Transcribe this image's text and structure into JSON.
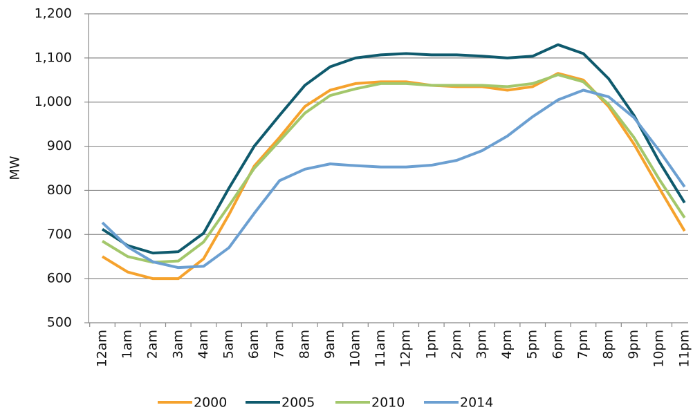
{
  "chart_data": {
    "type": "line",
    "y_label": "MW",
    "categories": [
      "12am",
      "1am",
      "2am",
      "3am",
      "4am",
      "5am",
      "6am",
      "7am",
      "8am",
      "9am",
      "10am",
      "11am",
      "12pm",
      "1pm",
      "2pm",
      "3pm",
      "4pm",
      "5pm",
      "6pm",
      "7pm",
      "8pm",
      "9pm",
      "10pm",
      "11pm"
    ],
    "series": [
      {
        "name": "2000",
        "color": "#f5a22d",
        "values": [
          650,
          615,
          600,
          600,
          645,
          745,
          855,
          920,
          990,
          1027,
          1042,
          1046,
          1046,
          1038,
          1035,
          1035,
          1027,
          1035,
          1065,
          1050,
          990,
          905,
          805,
          708
        ]
      },
      {
        "name": "2005",
        "color": "#0f5a6d",
        "values": [
          712,
          675,
          658,
          661,
          703,
          805,
          900,
          970,
          1038,
          1080,
          1100,
          1107,
          1110,
          1107,
          1107,
          1104,
          1100,
          1104,
          1130,
          1110,
          1053,
          970,
          865,
          772
        ]
      },
      {
        "name": "2010",
        "color": "#a3c76b",
        "values": [
          685,
          650,
          637,
          640,
          683,
          765,
          850,
          912,
          975,
          1015,
          1030,
          1042,
          1042,
          1038,
          1038,
          1038,
          1035,
          1042,
          1062,
          1046,
          995,
          920,
          825,
          738
        ]
      },
      {
        "name": "2014",
        "color": "#6b9fd1",
        "values": [
          727,
          672,
          638,
          625,
          628,
          670,
          748,
          822,
          848,
          860,
          856,
          853,
          853,
          857,
          868,
          890,
          923,
          967,
          1005,
          1027,
          1012,
          965,
          890,
          808
        ]
      }
    ],
    "ylim": [
      500,
      1200
    ],
    "yticks": [
      500,
      600,
      700,
      800,
      900,
      {
        "value": 1000,
        "label": "1,000"
      },
      {
        "value": 1100,
        "label": "1,100"
      },
      {
        "value": 1200,
        "label": "1,200"
      }
    ],
    "grid": true
  }
}
